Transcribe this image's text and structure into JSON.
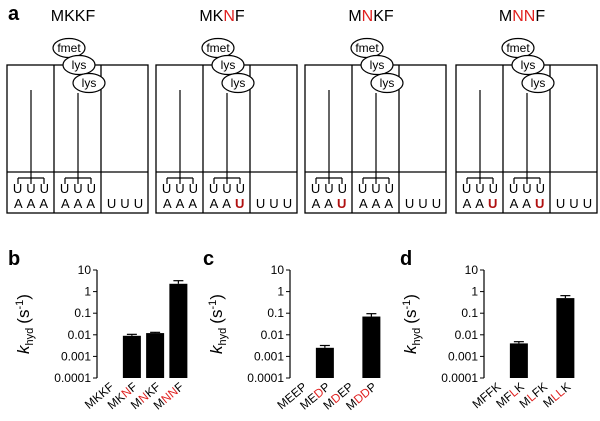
{
  "panel_a": {
    "label": "a",
    "ribosomes": [
      {
        "title": "MKKF",
        "title_highlight": [],
        "trnas": [
          "fmet",
          "lys",
          "lys"
        ],
        "anticodons": [
          "UUU",
          "UUU"
        ],
        "codons": [
          "AAA",
          "AAA",
          "UUU"
        ],
        "codon_highlight": [
          [],
          [],
          []
        ]
      },
      {
        "title": "MKNF",
        "title_highlight": [
          2
        ],
        "trnas": [
          "fmet",
          "lys",
          "lys"
        ],
        "anticodons": [
          "UUU",
          "UUU"
        ],
        "codons": [
          "AAA",
          "AAU",
          "UUU"
        ],
        "codon_highlight": [
          [],
          [
            2
          ],
          []
        ]
      },
      {
        "title": "MNKF",
        "title_highlight": [
          1
        ],
        "trnas": [
          "fmet",
          "lys",
          "lys"
        ],
        "anticodons": [
          "UUU",
          "UUU"
        ],
        "codons": [
          "AAU",
          "AAA",
          "UUU"
        ],
        "codon_highlight": [
          [
            2
          ],
          [],
          []
        ]
      },
      {
        "title": "MNNF",
        "title_highlight": [
          1,
          2
        ],
        "trnas": [
          "fmet",
          "lys",
          "lys"
        ],
        "anticodons": [
          "UUU",
          "UUU"
        ],
        "codons": [
          "AAU",
          "AAU",
          "UUU"
        ],
        "codon_highlight": [
          [
            2
          ],
          [
            2
          ],
          []
        ]
      }
    ],
    "title_highlight_color": "#e0201f",
    "codon_highlight_color": "#b01010"
  },
  "chart_data": [
    {
      "type": "bar",
      "label": "b",
      "categories": [
        "MKKF",
        "MKNF",
        "MNKF",
        "MNNF"
      ],
      "category_highlight": [
        [],
        [
          2
        ],
        [
          1
        ],
        [
          1,
          2
        ]
      ],
      "values": [
        null,
        0.009,
        0.012,
        2.3
      ],
      "errors": [
        null,
        0.0015,
        0.001,
        0.9
      ],
      "color": "#000000",
      "highlight_color": "#e0201f",
      "log_scale": true,
      "ylim": [
        0.0001,
        10
      ],
      "yticks": [
        0.0001,
        0.001,
        0.01,
        0.1,
        1,
        10
      ],
      "y_label": {
        "symbol": "k",
        "subscript": "hyd",
        "open": "(s",
        "superscript": "-1",
        "close": ")"
      }
    },
    {
      "type": "bar",
      "label": "c",
      "categories": [
        "MEEP",
        "MEDP",
        "MDEP",
        "MDDP"
      ],
      "category_highlight": [
        [],
        [
          2
        ],
        [
          1
        ],
        [
          1,
          2
        ]
      ],
      "values": [
        null,
        0.0025,
        null,
        0.07
      ],
      "errors": [
        null,
        0.0007,
        null,
        0.025
      ],
      "color": "#000000",
      "highlight_color": "#e0201f",
      "log_scale": true,
      "ylim": [
        0.0001,
        10
      ],
      "yticks": [
        0.0001,
        0.001,
        0.01,
        0.1,
        1,
        10
      ],
      "y_label": {
        "symbol": "k",
        "subscript": "hyd",
        "open": "(s",
        "superscript": "-1",
        "close": ")"
      }
    },
    {
      "type": "bar",
      "label": "d",
      "categories": [
        "MFFK",
        "MFLK",
        "MLFK",
        "MLLK"
      ],
      "category_highlight": [
        [],
        [
          2
        ],
        [
          1
        ],
        [
          1,
          2
        ]
      ],
      "values": [
        null,
        0.004,
        null,
        0.5
      ],
      "errors": [
        null,
        0.0008,
        null,
        0.15
      ],
      "color": "#000000",
      "highlight_color": "#e0201f",
      "log_scale": true,
      "ylim": [
        0.0001,
        10
      ],
      "yticks": [
        0.0001,
        0.001,
        0.01,
        0.1,
        1,
        10
      ],
      "y_label": {
        "symbol": "k",
        "subscript": "hyd",
        "open": "(s",
        "superscript": "-1",
        "close": ")"
      }
    }
  ]
}
